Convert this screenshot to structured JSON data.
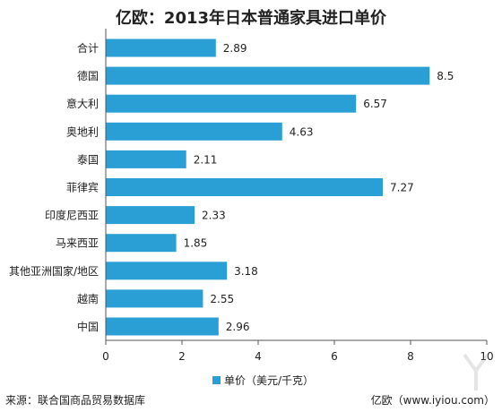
{
  "header": {
    "title": "亿欧：2013年日本普通家具进口单价"
  },
  "footer": {
    "source": "来源：联合国商品贸易数据库",
    "credit": "亿欧（www.iyiou.com）"
  },
  "colors": {
    "bar": "#2a9fd6",
    "axis": "#555555",
    "text": "#222222"
  },
  "chart_data": {
    "type": "bar",
    "orientation": "horizontal",
    "categories": [
      "合计",
      "德国",
      "意大利",
      "奥地利",
      "泰国",
      "菲律宾",
      "印度尼西亚",
      "马来西亚",
      "其他亚洲国家/地区",
      "越南",
      "中国"
    ],
    "value_labels": [
      "2.89",
      "8.5",
      "6.57",
      "4.63",
      "2.11",
      "7.27",
      "2.33",
      "1.85",
      "3.18",
      "2.55",
      "2.96"
    ],
    "series": [
      {
        "name": "单价（美元/千克）",
        "values": [
          2.89,
          8.5,
          6.57,
          4.63,
          2.11,
          7.27,
          2.33,
          1.85,
          3.18,
          2.55,
          2.96
        ]
      }
    ],
    "xlim": [
      0,
      10
    ],
    "xticks": [
      "0",
      "2",
      "4",
      "6",
      "8",
      "10"
    ],
    "legend_position": "bottom",
    "grid": false
  }
}
